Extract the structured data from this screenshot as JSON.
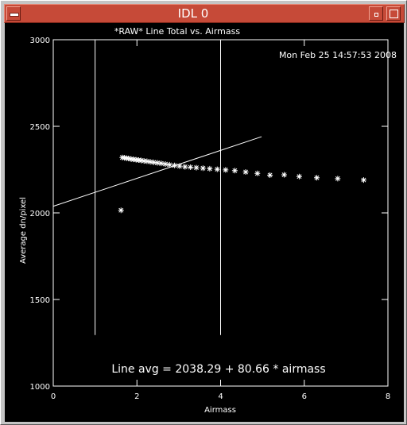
{
  "window": {
    "title": "IDL 0",
    "menu_icon": "window-menu-icon",
    "minimize_icon": "minimize-icon",
    "maximize_icon": "maximize-icon"
  },
  "chart_data": {
    "type": "scatter",
    "title": "*RAW* Line Total vs. Airmass",
    "timestamp": "Mon Feb 25 14:57:53 2008",
    "xlabel": "Airmass",
    "ylabel": "Average dn/pixel",
    "xlim": [
      0,
      8
    ],
    "ylim": [
      1000,
      3000
    ],
    "x_ticks": [
      0,
      2,
      4,
      6,
      8
    ],
    "y_ticks": [
      1000,
      1500,
      2000,
      2500,
      3000
    ],
    "x_tick_labels": [
      "0",
      "2",
      "4",
      "6",
      "8"
    ],
    "y_tick_labels": [
      "1000",
      "1500",
      "2000",
      "2500",
      "3000"
    ],
    "grid": false,
    "marker": "asterisk",
    "points": [
      {
        "x": 1.62,
        "y": 2015
      },
      {
        "x": 1.65,
        "y": 2320
      },
      {
        "x": 1.7,
        "y": 2318
      },
      {
        "x": 1.75,
        "y": 2316
      },
      {
        "x": 1.8,
        "y": 2314
      },
      {
        "x": 1.86,
        "y": 2311
      },
      {
        "x": 1.92,
        "y": 2309
      },
      {
        "x": 1.98,
        "y": 2307
      },
      {
        "x": 2.04,
        "y": 2305
      },
      {
        "x": 2.1,
        "y": 2303
      },
      {
        "x": 2.17,
        "y": 2300
      },
      {
        "x": 2.24,
        "y": 2298
      },
      {
        "x": 2.32,
        "y": 2295
      },
      {
        "x": 2.4,
        "y": 2292
      },
      {
        "x": 2.49,
        "y": 2289
      },
      {
        "x": 2.58,
        "y": 2286
      },
      {
        "x": 2.68,
        "y": 2282
      },
      {
        "x": 2.78,
        "y": 2278
      },
      {
        "x": 2.9,
        "y": 2274
      },
      {
        "x": 3.02,
        "y": 2270
      },
      {
        "x": 3.15,
        "y": 2266
      },
      {
        "x": 3.28,
        "y": 2264
      },
      {
        "x": 3.42,
        "y": 2261
      },
      {
        "x": 3.58,
        "y": 2258
      },
      {
        "x": 3.74,
        "y": 2255
      },
      {
        "x": 3.92,
        "y": 2252
      },
      {
        "x": 4.12,
        "y": 2248
      },
      {
        "x": 4.34,
        "y": 2244
      },
      {
        "x": 4.6,
        "y": 2236
      },
      {
        "x": 4.88,
        "y": 2228
      },
      {
        "x": 5.18,
        "y": 2218
      },
      {
        "x": 5.52,
        "y": 2220
      },
      {
        "x": 5.88,
        "y": 2210
      },
      {
        "x": 6.3,
        "y": 2203
      },
      {
        "x": 6.8,
        "y": 2198
      },
      {
        "x": 7.42,
        "y": 2190
      }
    ],
    "fit_line": {
      "intercept": 2038.29,
      "slope": 80.66,
      "x_range": [
        0,
        4.98
      ]
    },
    "vertical_lines": [
      {
        "x": 1.0,
        "y_range": [
          1295,
          3000
        ]
      },
      {
        "x": 4.0,
        "y_range": [
          1295,
          3000
        ]
      }
    ],
    "annotation": "Line avg = 2038.29 + 80.66 * airmass"
  }
}
